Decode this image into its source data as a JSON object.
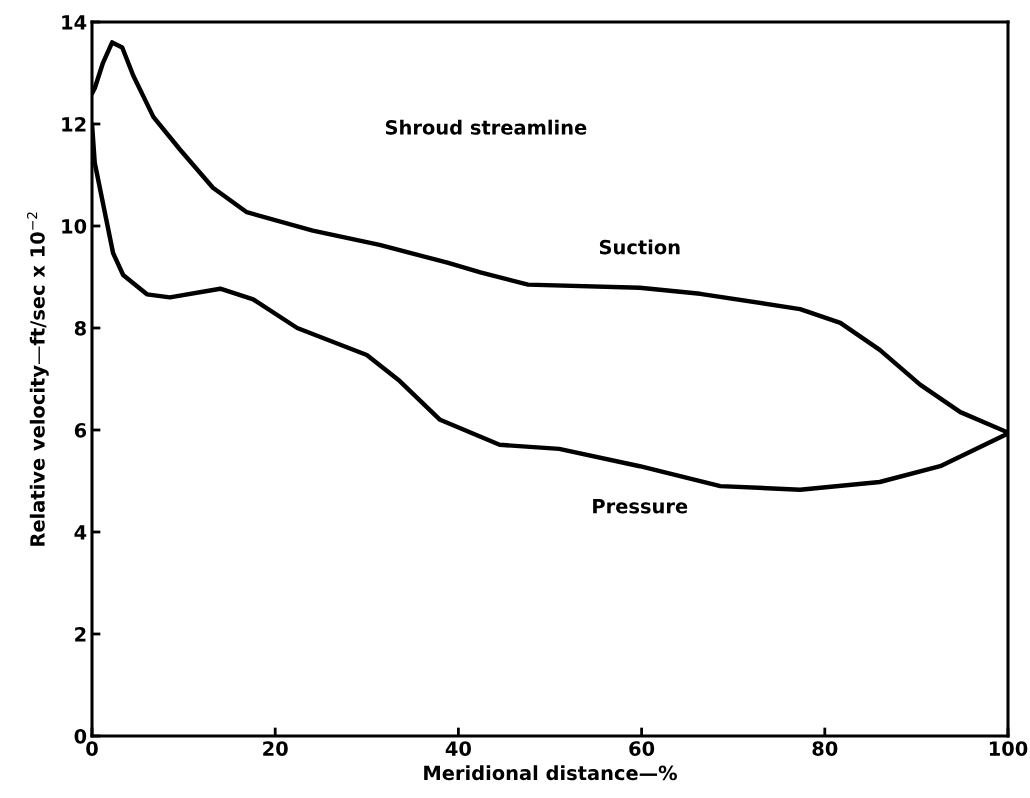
{
  "chart_data": {
    "type": "line",
    "xlabel": "Meridional distance—%",
    "ylabel": "Relative velocity—ft/sec x 10$^{−2}$",
    "xlim": [
      0,
      100
    ],
    "ylim": [
      0,
      14
    ],
    "xticks": [
      0,
      20,
      40,
      60,
      80,
      100
    ],
    "yticks": [
      0,
      2,
      4,
      6,
      8,
      10,
      12,
      14
    ],
    "grid": false,
    "legend": false,
    "marker": "none",
    "line_style": "solid",
    "series": [
      {
        "name": "Suction",
        "color": "#000000",
        "x": [
          0,
          0.3,
          1.2,
          2.2,
          3.3,
          4.5,
          6.7,
          9.6,
          13.2,
          16.9,
          24.1,
          31.4,
          38.8,
          42.4,
          47.6,
          59.8,
          66.4,
          77.3,
          81.7,
          86.0,
          90.4,
          94.8,
          100
        ],
        "values": [
          12.6,
          12.7,
          13.2,
          13.6,
          13.5,
          12.95,
          12.14,
          11.5,
          10.75,
          10.27,
          9.91,
          9.63,
          9.28,
          9.09,
          8.85,
          8.79,
          8.67,
          8.37,
          8.1,
          7.57,
          6.89,
          6.35,
          5.95
        ]
      },
      {
        "name": "Pressure",
        "color": "#000000",
        "x": [
          0,
          0.3,
          2.3,
          3.4,
          6,
          8.5,
          14,
          17.6,
          22.4,
          30,
          33.6,
          38,
          44.5,
          51,
          59.8,
          68.6,
          77.3,
          86,
          92.6,
          100
        ],
        "values": [
          12.0,
          11.24,
          9.47,
          9.04,
          8.66,
          8.6,
          8.77,
          8.56,
          8.0,
          7.47,
          6.96,
          6.2,
          5.71,
          5.63,
          5.29,
          4.9,
          4.83,
          4.98,
          5.29,
          5.93
        ]
      }
    ],
    "annotations": [
      "Shroud streamline"
    ]
  }
}
